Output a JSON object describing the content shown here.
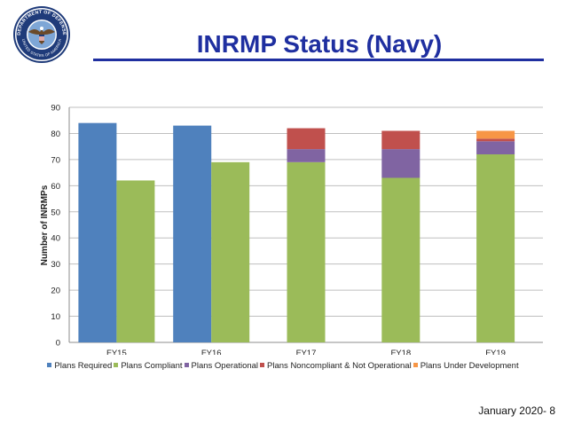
{
  "slide": {
    "title": "INRMP Status (Navy)",
    "footer": "January 2020- 8"
  },
  "logo": {
    "name": "department-of-defense-seal",
    "text_top": "DEPARTMENT OF DEFENSE",
    "text_bottom": "UNITED STATES OF AMERICA"
  },
  "chart_data": {
    "type": "bar",
    "stacked": true,
    "categories": [
      "FY15",
      "FY16",
      "FY17",
      "FY18",
      "FY19"
    ],
    "ylabel": "Number of INRMPs",
    "xlabel": "",
    "ylim": [
      0,
      90
    ],
    "yticks": [
      0,
      10,
      20,
      30,
      40,
      50,
      60,
      70,
      80,
      90
    ],
    "grid": true,
    "legend": "bottom",
    "series": [
      {
        "name": "Plans Required",
        "color": "#4f81bd",
        "group": "required",
        "values": [
          84,
          83,
          null,
          null,
          null
        ]
      },
      {
        "name": "Plans Compliant",
        "color": "#9bbb59",
        "group": "status",
        "values": [
          62,
          69,
          69,
          63,
          72
        ]
      },
      {
        "name": "Plans Operational",
        "color": "#8064a2",
        "group": "status",
        "values": [
          0,
          0,
          5,
          11,
          5
        ]
      },
      {
        "name": "Plans Noncompliant & Not Operational",
        "color": "#c0504d",
        "group": "status",
        "values": [
          0,
          0,
          8,
          7,
          1
        ]
      },
      {
        "name": "Plans Under Development",
        "color": "#f79646",
        "group": "status",
        "values": [
          0,
          0,
          0,
          0,
          3
        ]
      }
    ]
  }
}
